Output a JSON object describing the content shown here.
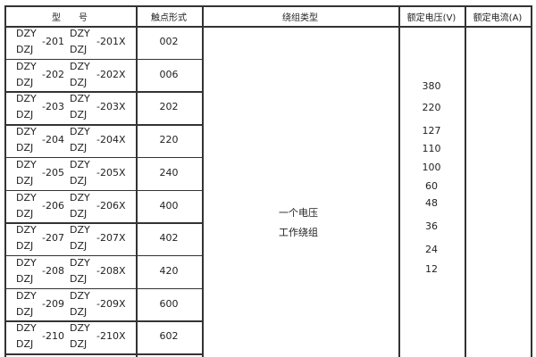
{
  "headers": {
    "model": "型　　号",
    "contact": "触点形式",
    "winding": "绕组类型",
    "voltage": "额定电压(V)",
    "current": "额定电流(A)"
  },
  "rows": [
    {
      "a": "DZY",
      "b": "DZJ",
      "n": "-201",
      "c": "DZY",
      "d": "DZJ",
      "x": "-201X",
      "contact": "002"
    },
    {
      "a": "DZY",
      "b": "DZJ",
      "n": "-202",
      "c": "DZY",
      "d": "DZJ",
      "x": "-202X",
      "contact": "006"
    },
    {
      "a": "DZY",
      "b": "DZJ",
      "n": "-203",
      "c": "DZY",
      "d": "DZJ",
      "x": "-203X",
      "contact": "202"
    },
    {
      "a": "DZY",
      "b": "DZJ",
      "n": "-204",
      "c": "DZY",
      "d": "DZJ",
      "x": "-204X",
      "contact": "220"
    },
    {
      "a": "DZY",
      "b": "DZJ",
      "n": "-205",
      "c": "DZY",
      "d": "DZJ",
      "x": "-205X",
      "contact": "240"
    },
    {
      "a": "DZY",
      "b": "DZJ",
      "n": "-206",
      "c": "DZY",
      "d": "DZJ",
      "x": "-206X",
      "contact": "400"
    },
    {
      "a": "DZY",
      "b": "DZJ",
      "n": "-207",
      "c": "DZY",
      "d": "DZJ",
      "x": "-207X",
      "contact": "402"
    },
    {
      "a": "DZY",
      "b": "DZJ",
      "n": "-208",
      "c": "DZY",
      "d": "DZJ",
      "x": "-208X",
      "contact": "420"
    },
    {
      "a": "DZY",
      "b": "DZJ",
      "n": "-209",
      "c": "DZY",
      "d": "DZJ",
      "x": "-209X",
      "contact": "600"
    },
    {
      "a": "DZY",
      "b": "DZJ",
      "n": "-210",
      "c": "DZY",
      "d": "DZJ",
      "x": "-210X",
      "contact": "602"
    }
  ],
  "winding": {
    "line1": "一个电压",
    "line2": "工作绕组"
  },
  "voltages": [
    "380",
    "220",
    "127",
    "110",
    "100",
    "60",
    "48",
    "36",
    "24",
    "12"
  ]
}
